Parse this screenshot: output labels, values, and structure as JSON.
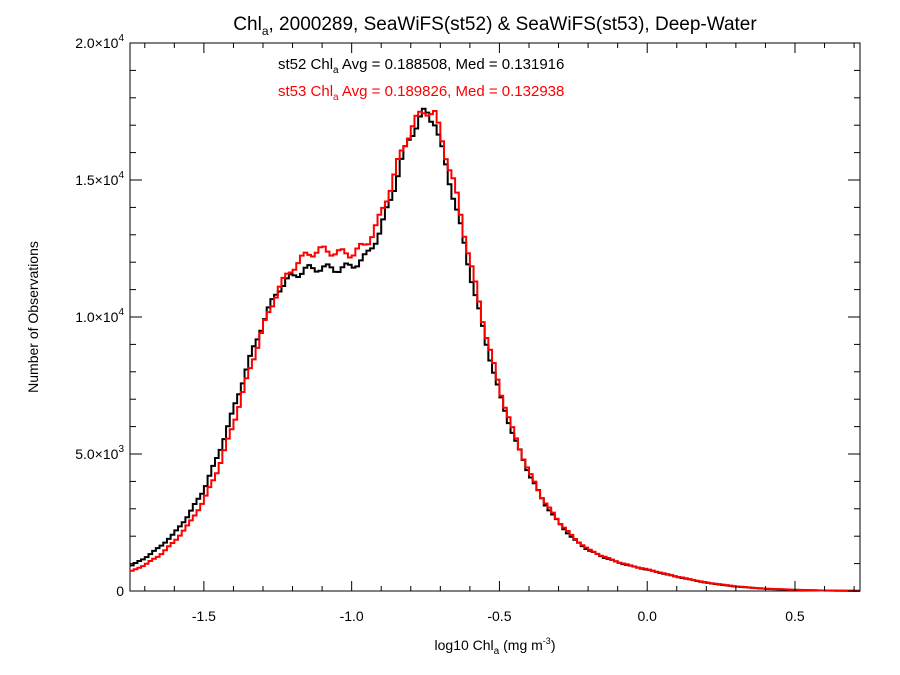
{
  "chart_data": {
    "type": "line",
    "step": true,
    "title": {
      "main": "Chl",
      "main_sub": "a",
      "rest": ", 2000289, SeaWiFS(st52) & SeaWiFS(st53), Deep-Water"
    },
    "xlabel": {
      "main": "log10 Chl",
      "sub": "a",
      "unit_pre": " (mg m",
      "unit_sup": "-3",
      "unit_post": ")"
    },
    "ylabel": "Number of Observations",
    "xlim": [
      -1.75,
      0.72
    ],
    "ylim": [
      0,
      20000
    ],
    "x_ticks": [
      {
        "value": -1.5,
        "label": "-1.5"
      },
      {
        "value": -1.0,
        "label": "-1.0"
      },
      {
        "value": -0.5,
        "label": "-0.5"
      },
      {
        "value": 0.0,
        "label": "0.0"
      },
      {
        "value": 0.5,
        "label": "0.5"
      }
    ],
    "y_ticks": [
      {
        "value": 0,
        "label": "0",
        "sup": ""
      },
      {
        "value": 5000,
        "label": "5.0×10",
        "sup": "3"
      },
      {
        "value": 10000,
        "label": "1.0×10",
        "sup": "4"
      },
      {
        "value": 15000,
        "label": "1.5×10",
        "sup": "4"
      },
      {
        "value": 20000,
        "label": "2.0×10",
        "sup": "4"
      }
    ],
    "grid": false,
    "annotations": [
      {
        "series": "st52",
        "pre": "st52 Chl",
        "sub": "a",
        "post": " Avg = 0.188508, Med = 0.131916",
        "color": "#000000"
      },
      {
        "series": "st53",
        "pre": "st53 Chl",
        "sub": "a",
        "post": " Avg = 0.189826, Med = 0.132938",
        "color": "#ff0000"
      }
    ],
    "series": [
      {
        "name": "st52",
        "color": "#000000",
        "points": [
          [
            -1.75,
            900
          ],
          [
            -1.7,
            1200
          ],
          [
            -1.65,
            1600
          ],
          [
            -1.6,
            2100
          ],
          [
            -1.55,
            2800
          ],
          [
            -1.5,
            3700
          ],
          [
            -1.45,
            5000
          ],
          [
            -1.4,
            6600
          ],
          [
            -1.35,
            8300
          ],
          [
            -1.3,
            9800
          ],
          [
            -1.25,
            11000
          ],
          [
            -1.2,
            11500
          ],
          [
            -1.15,
            11750
          ],
          [
            -1.1,
            11800
          ],
          [
            -1.05,
            11750
          ],
          [
            -1.0,
            11850
          ],
          [
            -0.95,
            12200
          ],
          [
            -0.9,
            13200
          ],
          [
            -0.85,
            15000
          ],
          [
            -0.8,
            16700
          ],
          [
            -0.75,
            17500
          ],
          [
            -0.72,
            17200
          ],
          [
            -0.7,
            16300
          ],
          [
            -0.65,
            14200
          ],
          [
            -0.6,
            11700
          ],
          [
            -0.55,
            9300
          ],
          [
            -0.5,
            7200
          ],
          [
            -0.45,
            5600
          ],
          [
            -0.4,
            4300
          ],
          [
            -0.35,
            3250
          ],
          [
            -0.3,
            2500
          ],
          [
            -0.25,
            1900
          ],
          [
            -0.2,
            1500
          ],
          [
            -0.15,
            1250
          ],
          [
            -0.1,
            1050
          ],
          [
            -0.05,
            900
          ],
          [
            0.0,
            780
          ],
          [
            0.05,
            650
          ],
          [
            0.1,
            520
          ],
          [
            0.2,
            300
          ],
          [
            0.3,
            160
          ],
          [
            0.4,
            80
          ],
          [
            0.5,
            40
          ],
          [
            0.6,
            15
          ],
          [
            0.72,
            5
          ]
        ]
      },
      {
        "name": "st53",
        "color": "#ff0000",
        "points": [
          [
            -1.75,
            700
          ],
          [
            -1.7,
            950
          ],
          [
            -1.65,
            1300
          ],
          [
            -1.6,
            1800
          ],
          [
            -1.55,
            2450
          ],
          [
            -1.5,
            3300
          ],
          [
            -1.45,
            4500
          ],
          [
            -1.4,
            6100
          ],
          [
            -1.35,
            7900
          ],
          [
            -1.3,
            9600
          ],
          [
            -1.25,
            11000
          ],
          [
            -1.2,
            11800
          ],
          [
            -1.15,
            12300
          ],
          [
            -1.1,
            12450
          ],
          [
            -1.05,
            12350
          ],
          [
            -1.0,
            12300
          ],
          [
            -0.95,
            12650
          ],
          [
            -0.9,
            13700
          ],
          [
            -0.85,
            15400
          ],
          [
            -0.8,
            16900
          ],
          [
            -0.75,
            17600
          ],
          [
            -0.72,
            17400
          ],
          [
            -0.7,
            16700
          ],
          [
            -0.65,
            14700
          ],
          [
            -0.6,
            12100
          ],
          [
            -0.55,
            9600
          ],
          [
            -0.5,
            7400
          ],
          [
            -0.45,
            5700
          ],
          [
            -0.4,
            4350
          ],
          [
            -0.35,
            3300
          ],
          [
            -0.3,
            2550
          ],
          [
            -0.25,
            1950
          ],
          [
            -0.2,
            1520
          ],
          [
            -0.15,
            1270
          ],
          [
            -0.1,
            1060
          ],
          [
            -0.05,
            910
          ],
          [
            0.0,
            790
          ],
          [
            0.05,
            660
          ],
          [
            0.1,
            530
          ],
          [
            0.2,
            310
          ],
          [
            0.3,
            170
          ],
          [
            0.4,
            85
          ],
          [
            0.5,
            45
          ],
          [
            0.6,
            18
          ],
          [
            0.72,
            6
          ]
        ]
      }
    ]
  }
}
